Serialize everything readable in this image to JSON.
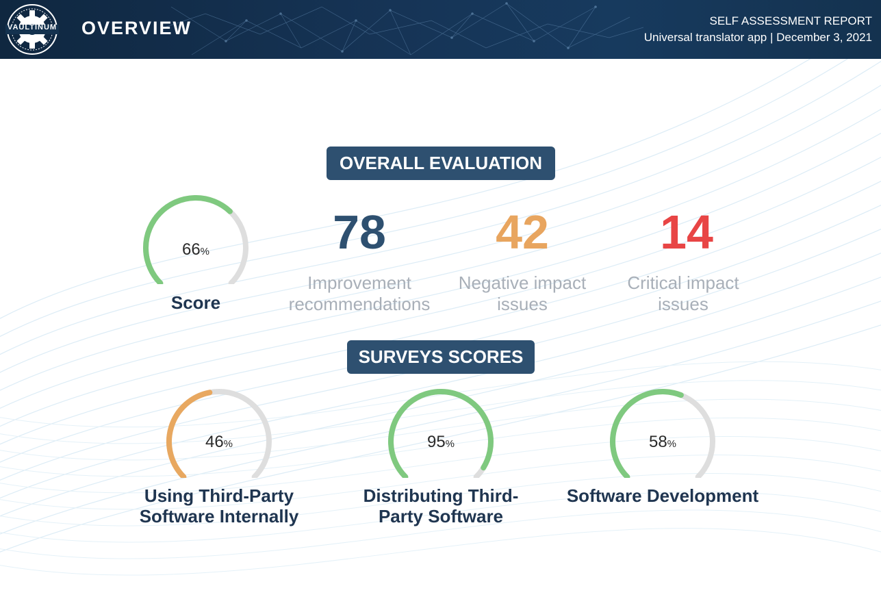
{
  "header": {
    "logo_text": "VAULTINUM",
    "page_title": "OVERVIEW",
    "report_title": "SELF ASSESSMENT REPORT",
    "report_subtitle": "Universal translator app | December 3, 2021"
  },
  "overall": {
    "section_title": "OVERALL EVALUATION",
    "score": {
      "value": 66,
      "percent_sign": "%",
      "label": "Score",
      "color": "#7fc97f"
    },
    "stats": [
      {
        "value": "78",
        "caption_line1": "Improvement",
        "caption_line2": "recommendations",
        "color": "#2e5070"
      },
      {
        "value": "42",
        "caption_line1": "Negative impact",
        "caption_line2": "issues",
        "color": "#e8a55f"
      },
      {
        "value": "14",
        "caption_line1": "Critical impact",
        "caption_line2": "issues",
        "color": "#e84545"
      }
    ]
  },
  "surveys": {
    "section_title": "SURVEYS SCORES",
    "items": [
      {
        "value": 46,
        "percent_sign": "%",
        "label_line1": "Using Third-Party",
        "label_line2": "Software Internally",
        "color": "#e8a860"
      },
      {
        "value": 95,
        "percent_sign": "%",
        "label_line1": "Distributing Third-",
        "label_line2": "Party Software",
        "color": "#7fc97f"
      },
      {
        "value": 58,
        "percent_sign": "%",
        "label_line1": "Software Development",
        "label_line2": "",
        "color": "#7fc97f"
      }
    ]
  },
  "colors": {
    "track": "#dedede",
    "pill": "#2e5070",
    "header": "#14324f"
  }
}
